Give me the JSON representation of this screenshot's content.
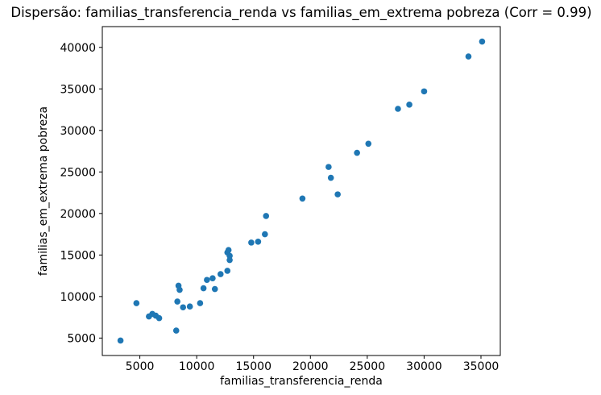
{
  "chart_data": {
    "type": "scatter",
    "title": "Dispersão: familias_transferencia_renda vs familias_em_extrema pobreza (Corr = 0.99)",
    "xlabel": "familias_transferencia_renda",
    "ylabel": "familias_em_extrema pobreza",
    "xlim": [
      1700,
      36700
    ],
    "ylim": [
      2900,
      42500
    ],
    "xticks": [
      5000,
      10000,
      15000,
      20000,
      25000,
      30000,
      35000
    ],
    "yticks": [
      5000,
      10000,
      15000,
      20000,
      25000,
      30000,
      35000,
      40000
    ],
    "marker_color": "#1f77b4",
    "grid": false,
    "legend": "none",
    "points": [
      [
        3300,
        4700
      ],
      [
        4700,
        9200
      ],
      [
        5800,
        7600
      ],
      [
        6100,
        7900
      ],
      [
        6400,
        7700
      ],
      [
        6700,
        7400
      ],
      [
        8200,
        5900
      ],
      [
        8300,
        9400
      ],
      [
        8400,
        11300
      ],
      [
        8500,
        10800
      ],
      [
        8800,
        8700
      ],
      [
        9400,
        8800
      ],
      [
        10300,
        9200
      ],
      [
        10600,
        11000
      ],
      [
        10900,
        12000
      ],
      [
        11400,
        12200
      ],
      [
        11600,
        10900
      ],
      [
        12100,
        12700
      ],
      [
        12700,
        13100
      ],
      [
        12700,
        15300
      ],
      [
        12800,
        15600
      ],
      [
        12900,
        14900
      ],
      [
        12900,
        14400
      ],
      [
        14800,
        16500
      ],
      [
        15400,
        16600
      ],
      [
        16000,
        17500
      ],
      [
        16100,
        19700
      ],
      [
        19300,
        21800
      ],
      [
        21600,
        25600
      ],
      [
        21800,
        24300
      ],
      [
        22400,
        22300
      ],
      [
        24100,
        27300
      ],
      [
        25100,
        28400
      ],
      [
        27700,
        32600
      ],
      [
        28700,
        33100
      ],
      [
        30000,
        34700
      ],
      [
        33900,
        38900
      ],
      [
        35100,
        40700
      ]
    ]
  }
}
